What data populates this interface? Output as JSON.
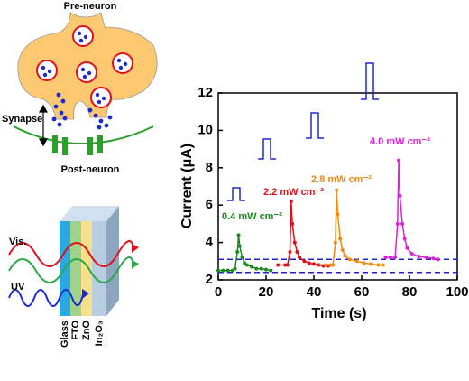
{
  "diagram": {
    "pre_neuron": "Pre-neuron",
    "synapse": "Synapse",
    "post_neuron": "Post-neuron",
    "vis": "Vis.",
    "uv": "UV",
    "layers": [
      "Glass",
      "FTO",
      "ZnO",
      "In₂O₃"
    ]
  },
  "chart_data": {
    "type": "line",
    "x_label": "Time (s)",
    "y_label": "Current (μA)",
    "xlim": [
      0,
      100
    ],
    "xticks": [
      0,
      20,
      40,
      60,
      80,
      100
    ],
    "ylim": [
      2,
      12
    ],
    "yticks": [
      2,
      4,
      6,
      8,
      10,
      12
    ],
    "series": [
      {
        "name": "0.4 mW cm⁻²",
        "color": "#1e8a1e",
        "x": [
          0,
          2,
          4,
          6,
          7,
          8,
          8.5,
          9,
          10,
          11,
          12,
          14,
          16,
          18,
          20,
          22
        ],
        "values": [
          2.5,
          2.5,
          2.5,
          2.5,
          2.6,
          3.5,
          4.4,
          3.8,
          3.2,
          2.9,
          2.8,
          2.7,
          2.6,
          2.6,
          2.55,
          2.5
        ]
      },
      {
        "name": "2.2 mW cm⁻²",
        "color": "#e0101a",
        "x": [
          25,
          28,
          29,
          30,
          30.5,
          31,
          32,
          33,
          34,
          36,
          38,
          40,
          42,
          44,
          46
        ],
        "values": [
          2.8,
          2.8,
          2.8,
          3.5,
          6.2,
          5.0,
          4.0,
          3.5,
          3.2,
          3.0,
          2.9,
          2.85,
          2.8,
          2.75,
          2.75
        ]
      },
      {
        "name": "2.8 mW cm⁻²",
        "color": "#f08a10",
        "x": [
          45,
          47,
          48,
          49,
          49.5,
          50,
          51,
          52,
          53,
          55,
          58,
          61,
          64,
          67,
          69
        ],
        "values": [
          2.8,
          2.8,
          2.8,
          4.0,
          6.8,
          5.5,
          4.2,
          3.6,
          3.3,
          3.1,
          3.0,
          2.9,
          2.85,
          2.8,
          2.8
        ]
      },
      {
        "name": "4.0 mW cm⁻²",
        "color": "#e020d8",
        "x": [
          70,
          72,
          74,
          75,
          75.5,
          76,
          77,
          78,
          79,
          81,
          84,
          87,
          90,
          92
        ],
        "values": [
          3.2,
          3.2,
          3.2,
          5.0,
          8.4,
          6.5,
          5.0,
          4.2,
          3.7,
          3.4,
          3.25,
          3.2,
          3.15,
          3.1
        ]
      }
    ],
    "reference_lines": {
      "values": [
        3.1,
        2.4
      ],
      "color": "#1f1fd0",
      "style": "dashed"
    }
  }
}
